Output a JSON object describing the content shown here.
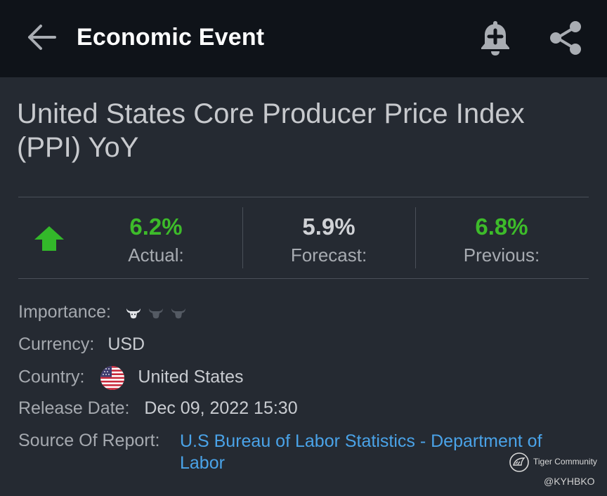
{
  "appbar": {
    "title": "Economic Event",
    "back_icon": "arrow-left-icon",
    "bell_icon": "bell-plus-icon",
    "share_icon": "share-icon"
  },
  "event": {
    "title": "United States Core Producer Price Index (PPI) YoY",
    "trend_icon": "up-arrow-icon",
    "actual": {
      "value": "6.2%",
      "label": "Actual:"
    },
    "forecast": {
      "value": "5.9%",
      "label": "Forecast:"
    },
    "previous": {
      "value": "6.8%",
      "label": "Previous:"
    }
  },
  "details": {
    "importance_label": "Importance:",
    "importance_level": 1,
    "importance_max": 3,
    "currency_label": "Currency:",
    "currency_value": "USD",
    "country_label": "Country:",
    "country_value": "United States",
    "release_label": "Release Date:",
    "release_value": "Dec 09, 2022 15:30",
    "source_label": "Source Of Report:",
    "source_value": "U.S Bureau of Labor Statistics - Department of Labor"
  },
  "watermark": {
    "brand": "Tiger Community",
    "user": "@KYHBKO"
  },
  "colors": {
    "background": "#252a32",
    "appbar": "#0f1319",
    "positive": "#3dbb2a",
    "link": "#4aa3e8"
  }
}
